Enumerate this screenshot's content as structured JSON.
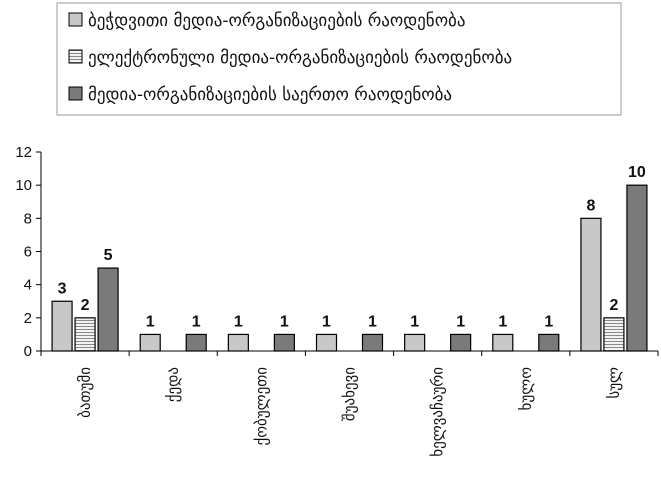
{
  "chart_data": {
    "type": "bar",
    "categories": [
      "ბათუმი",
      "ქედა",
      "ქობულეთი",
      "შუახევი",
      "ხელვაჩაური",
      "ხულო",
      "სულ"
    ],
    "series": [
      {
        "name": "ბეჭდვითი მედია-ორგანიზაციების რაოდენობა",
        "values": [
          3,
          1,
          1,
          1,
          1,
          1,
          8
        ],
        "color": "#c8c8c8",
        "pattern": "solid"
      },
      {
        "name": "ელექტრონული მედია-ორგანიზაციების რაოდენობა",
        "values": [
          2,
          0,
          0,
          0,
          0,
          0,
          2
        ],
        "color": "#e4e4e4",
        "pattern": "horizontal-lines"
      },
      {
        "name": "მედია-ორგანიზაციების საერთო რაოდენობა",
        "values": [
          5,
          1,
          1,
          1,
          1,
          1,
          10
        ],
        "color": "#7a7a7a",
        "pattern": "solid"
      }
    ],
    "ylim": [
      0,
      12
    ],
    "yticks": [
      0,
      2,
      4,
      6,
      8,
      10,
      12
    ],
    "grid": false,
    "legend_position": "top",
    "category_label_rotation": "vertical"
  }
}
